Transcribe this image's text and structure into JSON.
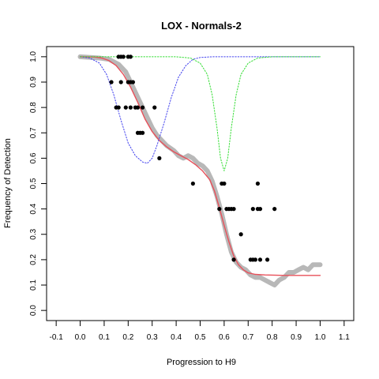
{
  "chart_data": {
    "type": "scatter",
    "title": "LOX - Normals-2",
    "xlabel": "Progression to H9",
    "ylabel": "Frequency of Detection",
    "xlim": [
      -0.14,
      1.14
    ],
    "ylim": [
      -0.04,
      1.04
    ],
    "x_ticks": [
      "-0.1",
      "0.0",
      "0.1",
      "0.2",
      "0.3",
      "0.4",
      "0.5",
      "0.6",
      "0.7",
      "0.8",
      "0.9",
      "1.0",
      "1.1"
    ],
    "y_ticks": [
      "0.0",
      "0.1",
      "0.2",
      "0.3",
      "0.4",
      "0.5",
      "0.6",
      "0.7",
      "0.8",
      "0.9",
      "1.0"
    ],
    "grid": false,
    "series": [
      {
        "kind": "points",
        "style": "black-dots",
        "color": "#000000",
        "points": [
          [
            0.16,
            1.0
          ],
          [
            0.17,
            1.0
          ],
          [
            0.18,
            1.0
          ],
          [
            0.2,
            1.0
          ],
          [
            0.21,
            1.0
          ],
          [
            0.13,
            0.9
          ],
          [
            0.17,
            0.9
          ],
          [
            0.2,
            0.9
          ],
          [
            0.21,
            0.9
          ],
          [
            0.22,
            0.9
          ],
          [
            0.15,
            0.8
          ],
          [
            0.16,
            0.8
          ],
          [
            0.19,
            0.8
          ],
          [
            0.21,
            0.8
          ],
          [
            0.23,
            0.8
          ],
          [
            0.24,
            0.8
          ],
          [
            0.26,
            0.8
          ],
          [
            0.31,
            0.8
          ],
          [
            0.24,
            0.7
          ],
          [
            0.25,
            0.7
          ],
          [
            0.26,
            0.7
          ],
          [
            0.33,
            0.6
          ],
          [
            0.47,
            0.5
          ],
          [
            0.59,
            0.5
          ],
          [
            0.6,
            0.5
          ],
          [
            0.74,
            0.5
          ],
          [
            0.58,
            0.4
          ],
          [
            0.61,
            0.4
          ],
          [
            0.62,
            0.4
          ],
          [
            0.63,
            0.4
          ],
          [
            0.64,
            0.4
          ],
          [
            0.72,
            0.4
          ],
          [
            0.74,
            0.4
          ],
          [
            0.75,
            0.4
          ],
          [
            0.81,
            0.4
          ],
          [
            0.67,
            0.3
          ],
          [
            0.64,
            0.2
          ],
          [
            0.71,
            0.2
          ],
          [
            0.72,
            0.2
          ],
          [
            0.73,
            0.2
          ],
          [
            0.75,
            0.2
          ],
          [
            0.78,
            0.2
          ]
        ]
      },
      {
        "kind": "curve",
        "style": "grey-thick",
        "color": "#b8b8b8",
        "points": [
          [
            0.0,
            1.0
          ],
          [
            0.08,
            0.995
          ],
          [
            0.12,
            0.99
          ],
          [
            0.16,
            0.97
          ],
          [
            0.19,
            0.94
          ],
          [
            0.22,
            0.88
          ],
          [
            0.25,
            0.82
          ],
          [
            0.28,
            0.76
          ],
          [
            0.3,
            0.72
          ],
          [
            0.32,
            0.69
          ],
          [
            0.34,
            0.67
          ],
          [
            0.36,
            0.65
          ],
          [
            0.39,
            0.63
          ],
          [
            0.41,
            0.61
          ],
          [
            0.43,
            0.6
          ],
          [
            0.45,
            0.61
          ],
          [
            0.47,
            0.6
          ],
          [
            0.49,
            0.58
          ],
          [
            0.51,
            0.57
          ],
          [
            0.53,
            0.55
          ],
          [
            0.55,
            0.51
          ],
          [
            0.57,
            0.45
          ],
          [
            0.59,
            0.38
          ],
          [
            0.61,
            0.3
          ],
          [
            0.63,
            0.23
          ],
          [
            0.65,
            0.19
          ],
          [
            0.67,
            0.17
          ],
          [
            0.69,
            0.16
          ],
          [
            0.71,
            0.14
          ],
          [
            0.73,
            0.13
          ],
          [
            0.75,
            0.13
          ],
          [
            0.77,
            0.12
          ],
          [
            0.79,
            0.11
          ],
          [
            0.81,
            0.1
          ],
          [
            0.83,
            0.12
          ],
          [
            0.85,
            0.13
          ],
          [
            0.87,
            0.15
          ],
          [
            0.89,
            0.15
          ],
          [
            0.91,
            0.16
          ],
          [
            0.93,
            0.17
          ],
          [
            0.95,
            0.16
          ],
          [
            0.97,
            0.18
          ],
          [
            0.99,
            0.18
          ],
          [
            1.0,
            0.18
          ]
        ]
      },
      {
        "kind": "curve",
        "style": "solid",
        "color": "#e8505a",
        "points": [
          [
            0.0,
            1.0
          ],
          [
            0.06,
            0.999
          ],
          [
            0.09,
            0.995
          ],
          [
            0.12,
            0.985
          ],
          [
            0.15,
            0.965
          ],
          [
            0.18,
            0.93
          ],
          [
            0.21,
            0.88
          ],
          [
            0.24,
            0.82
          ],
          [
            0.27,
            0.755
          ],
          [
            0.3,
            0.705
          ],
          [
            0.33,
            0.67
          ],
          [
            0.36,
            0.645
          ],
          [
            0.39,
            0.625
          ],
          [
            0.42,
            0.61
          ],
          [
            0.45,
            0.595
          ],
          [
            0.48,
            0.575
          ],
          [
            0.51,
            0.55
          ],
          [
            0.54,
            0.515
          ],
          [
            0.56,
            0.47
          ],
          [
            0.58,
            0.405
          ],
          [
            0.6,
            0.335
          ],
          [
            0.62,
            0.27
          ],
          [
            0.64,
            0.215
          ],
          [
            0.66,
            0.18
          ],
          [
            0.68,
            0.16
          ],
          [
            0.7,
            0.148
          ],
          [
            0.73,
            0.142
          ],
          [
            0.77,
            0.14
          ],
          [
            0.85,
            0.138
          ],
          [
            1.0,
            0.138
          ]
        ]
      },
      {
        "kind": "curve",
        "style": "dotted",
        "color": "#4444ee",
        "points": [
          [
            0.0,
            1.0
          ],
          [
            0.04,
            0.995
          ],
          [
            0.08,
            0.975
          ],
          [
            0.11,
            0.93
          ],
          [
            0.14,
            0.85
          ],
          [
            0.17,
            0.75
          ],
          [
            0.2,
            0.66
          ],
          [
            0.23,
            0.61
          ],
          [
            0.26,
            0.585
          ],
          [
            0.28,
            0.58
          ],
          [
            0.3,
            0.6
          ],
          [
            0.32,
            0.65
          ],
          [
            0.35,
            0.74
          ],
          [
            0.38,
            0.84
          ],
          [
            0.41,
            0.92
          ],
          [
            0.44,
            0.965
          ],
          [
            0.47,
            0.99
          ],
          [
            0.5,
            0.997
          ],
          [
            0.55,
            1.0
          ],
          [
            1.0,
            1.0
          ]
        ]
      },
      {
        "kind": "curve",
        "style": "dotted",
        "color": "#33dd33",
        "points": [
          [
            0.0,
            1.0
          ],
          [
            0.4,
            1.0
          ],
          [
            0.46,
            0.995
          ],
          [
            0.5,
            0.975
          ],
          [
            0.53,
            0.93
          ],
          [
            0.55,
            0.85
          ],
          [
            0.57,
            0.72
          ],
          [
            0.585,
            0.6
          ],
          [
            0.6,
            0.55
          ],
          [
            0.615,
            0.6
          ],
          [
            0.63,
            0.72
          ],
          [
            0.65,
            0.85
          ],
          [
            0.67,
            0.93
          ],
          [
            0.7,
            0.975
          ],
          [
            0.74,
            0.995
          ],
          [
            0.8,
            1.0
          ],
          [
            1.0,
            1.0
          ]
        ]
      }
    ]
  }
}
